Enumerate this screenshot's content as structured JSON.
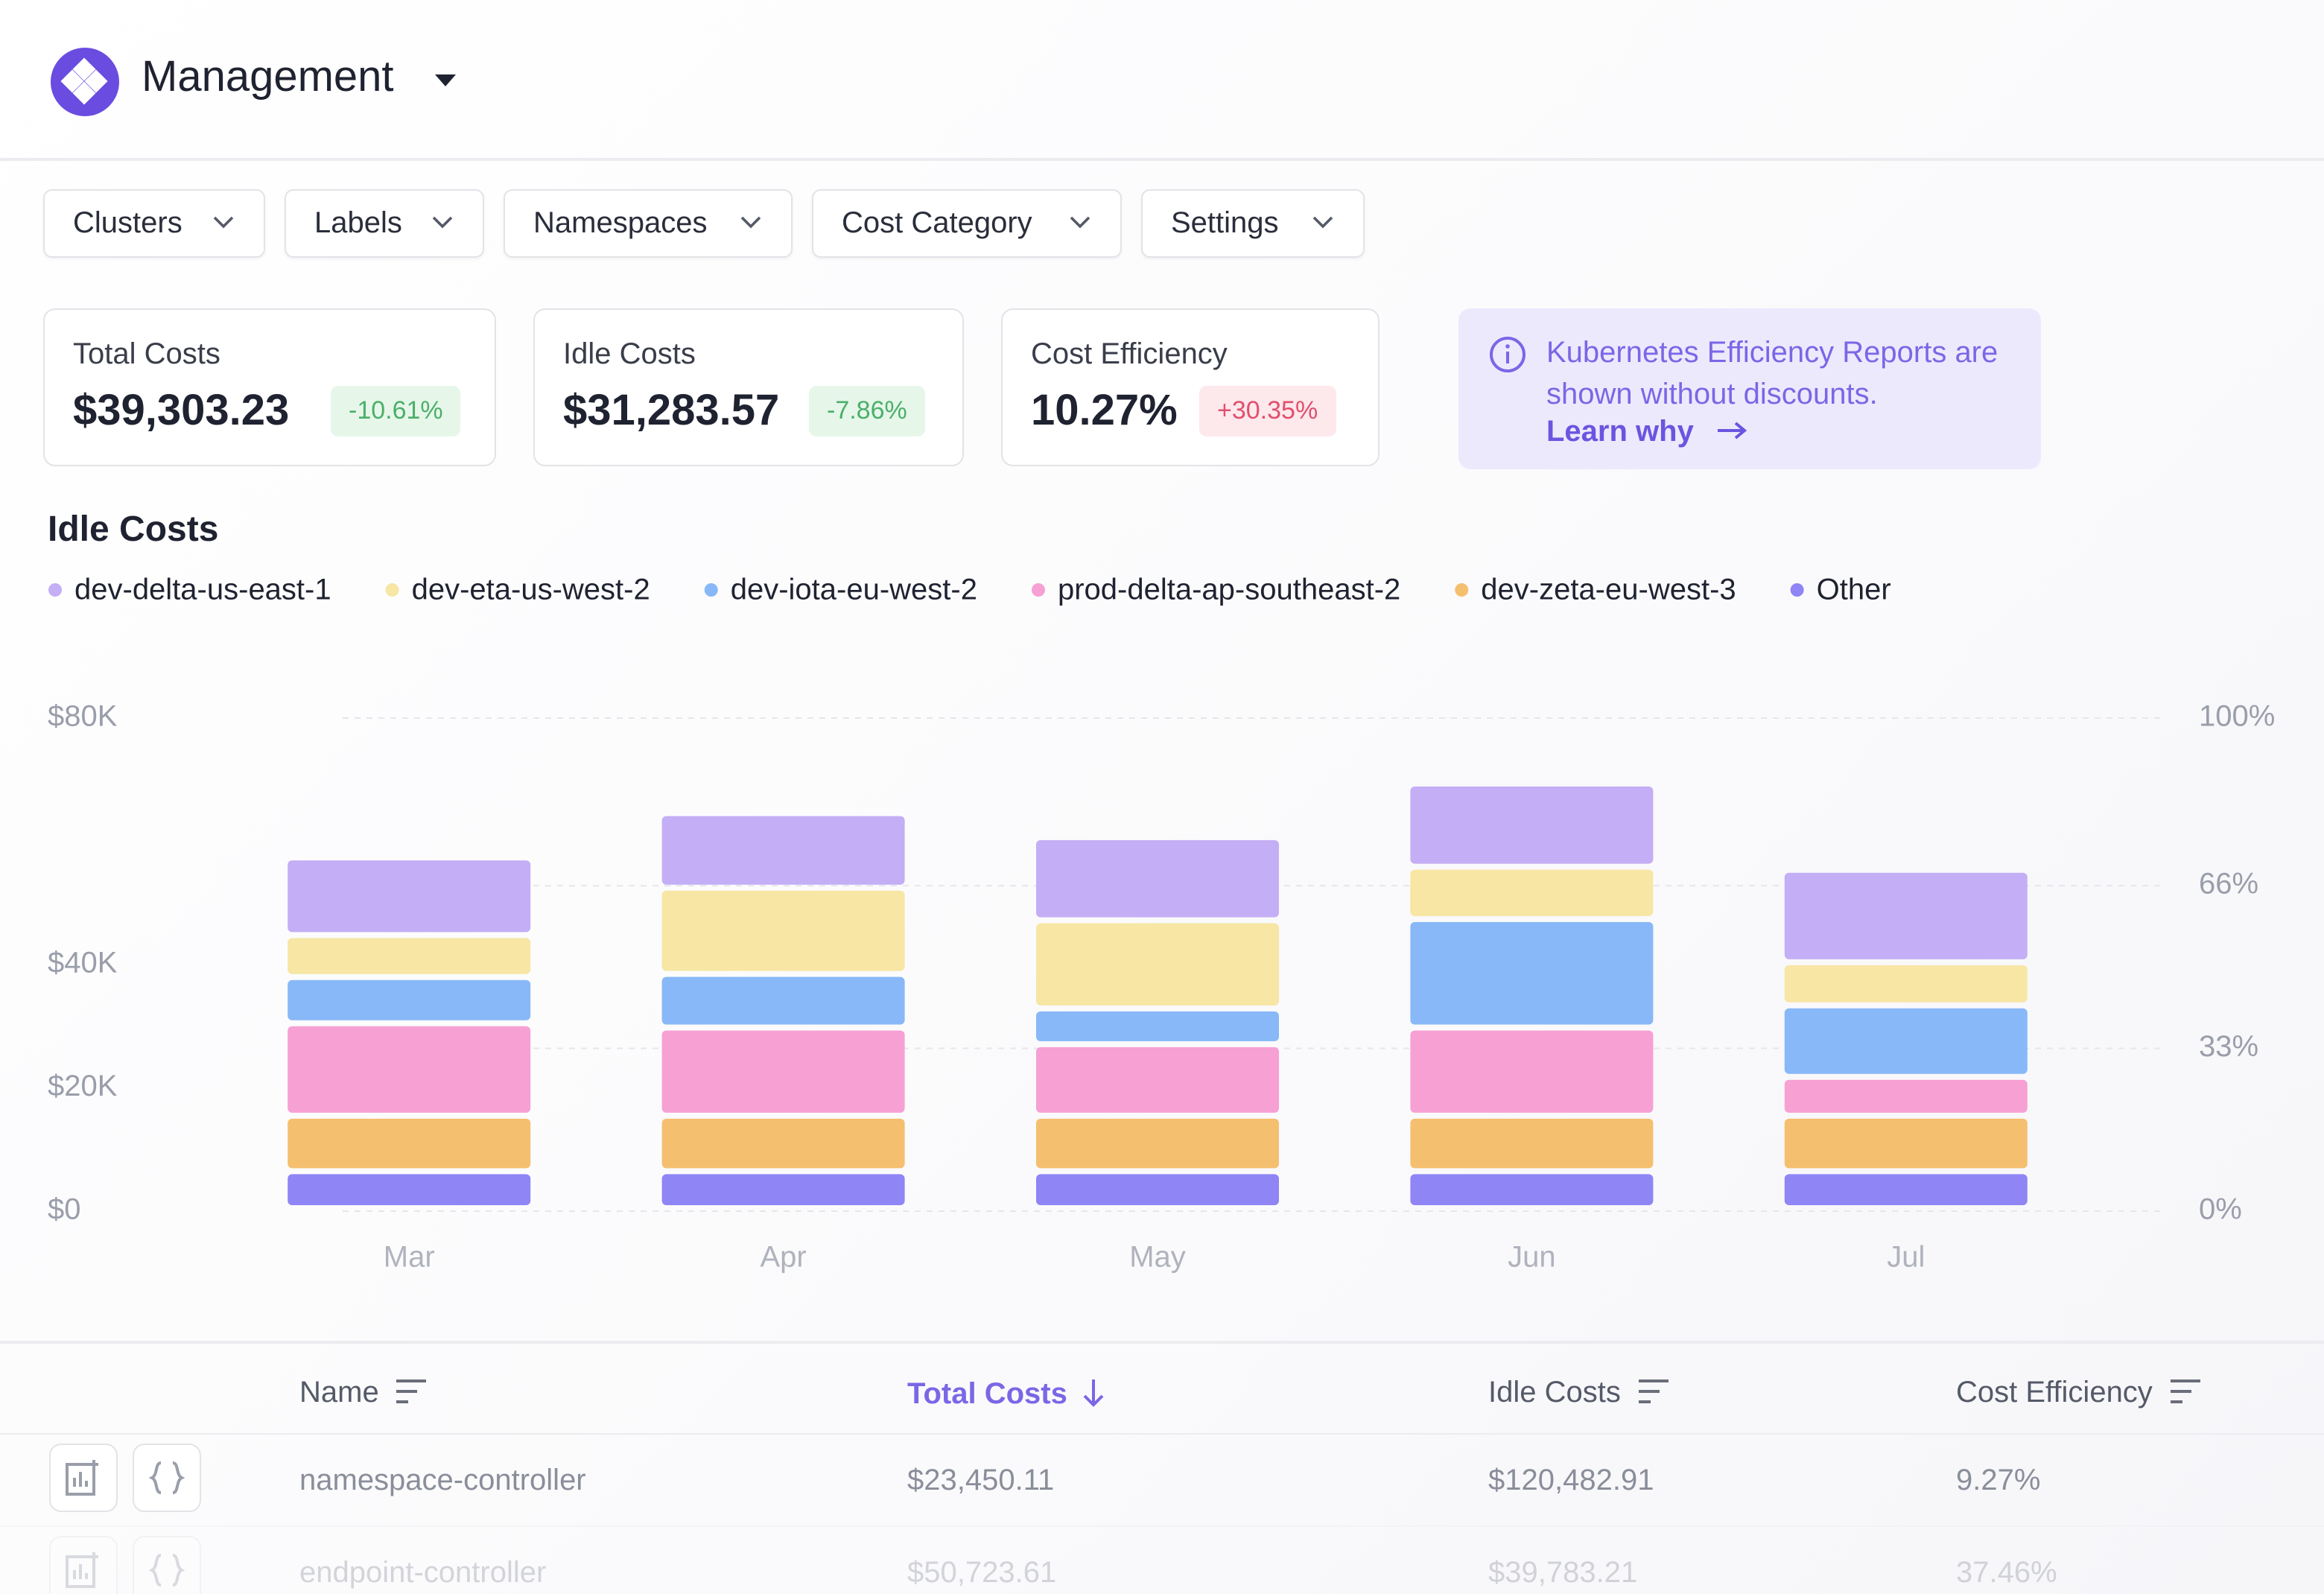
{
  "header": {
    "title": "Management"
  },
  "filters": [
    "Clusters",
    "Labels",
    "Namespaces",
    "Cost Category",
    "Settings"
  ],
  "kpis": [
    {
      "label": "Total Costs",
      "value": "$39,303.23",
      "change": "-10.61%"
    },
    {
      "label": "Idle Costs",
      "value": "$31,283.57",
      "change": "-7.86%"
    },
    {
      "label": "Cost Efficiency",
      "value": "10.27%",
      "change": "+30.35%"
    }
  ],
  "info": {
    "text": "Kubernetes Efficiency Reports are shown without discounts.",
    "link": "Learn why"
  },
  "chart_data": {
    "type": "stacked-bar",
    "title": "Idle Costs",
    "categories": [
      "Mar",
      "Apr",
      "May",
      "Jun",
      "Jul"
    ],
    "series": [
      {
        "name": "Other",
        "color": "#8f85f5",
        "values": [
          6000,
          6000,
          6000,
          6000,
          6000
        ]
      },
      {
        "name": "dev-zeta-eu-west-3",
        "color": "#f5bf70",
        "values": [
          9000,
          9000,
          9000,
          9000,
          9000
        ]
      },
      {
        "name": "prod-delta-ap-southeast-2",
        "color": "#f7a0d4",
        "values": [
          15000,
          14300,
          11600,
          14300,
          6300
        ]
      },
      {
        "name": "dev-iota-eu-west-2",
        "color": "#88b8f7",
        "values": [
          7500,
          8700,
          5800,
          17600,
          11600
        ]
      },
      {
        "name": "dev-eta-us-west-2",
        "color": "#f7e6a4",
        "values": [
          6800,
          14000,
          14300,
          8500,
          7000
        ]
      },
      {
        "name": "dev-delta-us-east-1",
        "color": "#c4aef5",
        "values": [
          12600,
          12100,
          13500,
          13500,
          15000
        ]
      }
    ],
    "legend_order": [
      5,
      4,
      3,
      2,
      1,
      0
    ],
    "ylim": [
      0,
      80000
    ],
    "yticks": [
      {
        "value": 0,
        "label": "$0"
      },
      {
        "value": 20000,
        "label": "$20K"
      },
      {
        "value": 40000,
        "label": "$40K"
      },
      {
        "value": 80000,
        "label": "$80K"
      }
    ],
    "y2lim": [
      0,
      100
    ],
    "y2ticks": [
      {
        "value": 0,
        "label": "0%"
      },
      {
        "value": 33,
        "label": "33%"
      },
      {
        "value": 66,
        "label": "66%"
      },
      {
        "value": 100,
        "label": "100%"
      }
    ],
    "grid": true
  },
  "table": {
    "columns": [
      "Name",
      "Total Costs",
      "Idle Costs",
      "Cost Efficiency"
    ],
    "rows": [
      [
        "namespace-controller",
        "$23,450.11",
        "$120,482.91",
        "9.27%"
      ],
      [
        "endpoint-controller",
        "$50,723.61",
        "$39,783.21",
        "37.46%"
      ]
    ]
  }
}
